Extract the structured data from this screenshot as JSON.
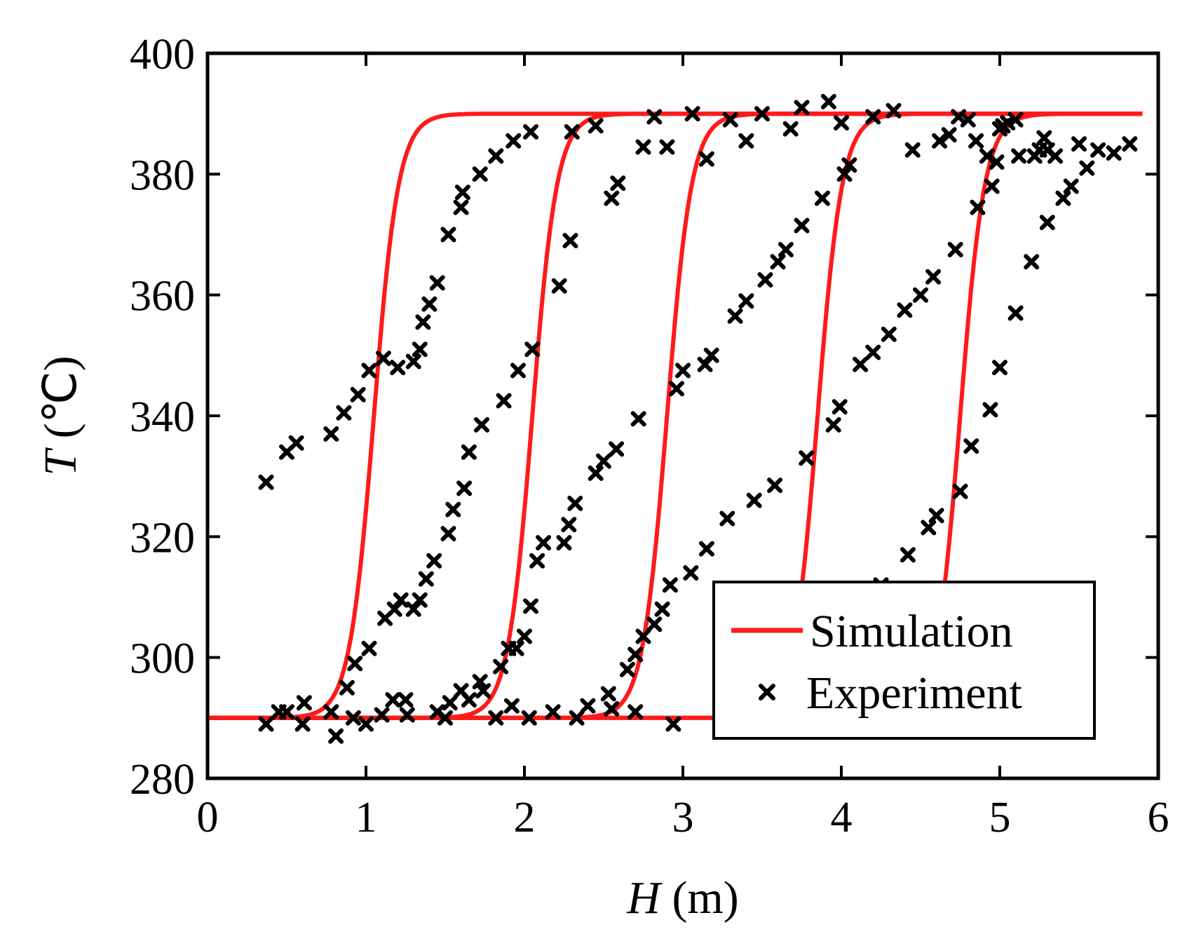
{
  "chart_data": {
    "type": "line",
    "title": "",
    "xlabel": {
      "symbol": "H",
      "unit": " (m)"
    },
    "ylabel": {
      "symbol": "T",
      "unit": " (℃)"
    },
    "xlim": [
      0,
      6
    ],
    "ylim": [
      280,
      400
    ],
    "x_ticks": [
      "0",
      "1",
      "2",
      "3",
      "4",
      "5",
      "6"
    ],
    "y_ticks": [
      "280",
      "300",
      "320",
      "340",
      "360",
      "380",
      "400"
    ],
    "grid": false,
    "legend_position": "bottom-right",
    "colors": {
      "simulation": "#ff1a1a",
      "experiment": "#000000",
      "axes": "#000000"
    },
    "series": [
      {
        "name": "Simulation",
        "kind": "line",
        "curves": [
          {
            "t_low": 290,
            "t_high": 390,
            "center_h": 1.05,
            "width_h": 0.62
          },
          {
            "t_low": 290,
            "t_high": 390,
            "center_h": 2.05,
            "width_h": 0.62
          },
          {
            "t_low": 290,
            "t_high": 390,
            "center_h": 2.9,
            "width_h": 0.62
          },
          {
            "t_low": 290,
            "t_high": 390,
            "center_h": 3.85,
            "width_h": 0.62
          },
          {
            "t_low": 290,
            "t_high": 390,
            "center_h": 4.75,
            "width_h": 0.62
          }
        ]
      },
      {
        "name": "Experiment",
        "kind": "scatter",
        "points": [
          [
            0.37,
            329
          ],
          [
            0.5,
            334
          ],
          [
            0.56,
            335.5
          ],
          [
            0.78,
            337
          ],
          [
            0.86,
            340.5
          ],
          [
            0.95,
            343.5
          ],
          [
            1.02,
            347.5
          ],
          [
            1.11,
            349.5
          ],
          [
            1.2,
            348
          ],
          [
            1.3,
            349
          ],
          [
            1.34,
            351
          ],
          [
            1.36,
            355.5
          ],
          [
            1.4,
            358.5
          ],
          [
            1.45,
            362
          ],
          [
            1.52,
            370
          ],
          [
            1.6,
            374.5
          ],
          [
            1.61,
            377
          ],
          [
            1.72,
            380
          ],
          [
            1.82,
            383
          ],
          [
            1.93,
            385.5
          ],
          [
            2.04,
            387
          ],
          [
            2.3,
            387
          ],
          [
            2.45,
            388
          ],
          [
            0.37,
            289
          ],
          [
            0.45,
            291
          ],
          [
            0.5,
            291
          ],
          [
            0.6,
            289
          ],
          [
            0.61,
            292.5
          ],
          [
            0.78,
            291
          ],
          [
            0.81,
            287
          ],
          [
            0.88,
            295
          ],
          [
            0.92,
            290
          ],
          [
            0.93,
            299
          ],
          [
            1.0,
            289
          ],
          [
            1.02,
            301.5
          ],
          [
            1.1,
            290.5
          ],
          [
            1.12,
            306.5
          ],
          [
            1.17,
            293
          ],
          [
            1.18,
            308
          ],
          [
            1.22,
            309.5
          ],
          [
            1.25,
            293
          ],
          [
            1.26,
            290.5
          ],
          [
            1.3,
            308
          ],
          [
            1.34,
            309.5
          ],
          [
            1.38,
            313
          ],
          [
            1.43,
            316
          ],
          [
            1.45,
            291
          ],
          [
            1.5,
            290
          ],
          [
            1.52,
            320.5
          ],
          [
            1.53,
            292.5
          ],
          [
            1.55,
            324.5
          ],
          [
            1.6,
            294.5
          ],
          [
            1.62,
            328
          ],
          [
            1.65,
            293
          ],
          [
            1.65,
            334
          ],
          [
            1.72,
            296
          ],
          [
            1.73,
            338.5
          ],
          [
            1.74,
            294.5
          ],
          [
            1.82,
            290
          ],
          [
            1.85,
            298.5
          ],
          [
            1.87,
            342.5
          ],
          [
            1.9,
            301.5
          ],
          [
            1.92,
            292
          ],
          [
            1.95,
            301.5
          ],
          [
            1.96,
            347.5
          ],
          [
            2.0,
            303.5
          ],
          [
            2.03,
            290
          ],
          [
            2.04,
            308.5
          ],
          [
            2.05,
            351
          ],
          [
            2.08,
            316
          ],
          [
            2.12,
            319
          ],
          [
            2.18,
            291
          ],
          [
            2.22,
            361.5
          ],
          [
            2.25,
            319
          ],
          [
            2.28,
            322
          ],
          [
            2.29,
            369
          ],
          [
            2.32,
            325.5
          ],
          [
            2.33,
            290
          ],
          [
            2.4,
            292
          ],
          [
            2.45,
            330.5
          ],
          [
            2.5,
            332.5
          ],
          [
            2.53,
            294
          ],
          [
            2.55,
            291.5
          ],
          [
            2.55,
            376
          ],
          [
            2.58,
            334.5
          ],
          [
            2.59,
            378.5
          ],
          [
            2.7,
            291
          ],
          [
            2.72,
            339.5
          ],
          [
            2.75,
            384.5
          ],
          [
            2.82,
            389.5
          ],
          [
            2.9,
            384.5
          ],
          [
            2.96,
            344.5
          ],
          [
            3.06,
            390
          ],
          [
            3.15,
            382.5
          ],
          [
            3.3,
            389
          ],
          [
            3.4,
            385.5
          ],
          [
            3.5,
            390
          ],
          [
            3.68,
            387.5
          ],
          [
            3.75,
            391
          ],
          [
            3.92,
            392
          ],
          [
            4.0,
            388.5
          ],
          [
            4.2,
            389.5
          ],
          [
            4.33,
            390.5
          ],
          [
            2.65,
            298
          ],
          [
            2.7,
            300.5
          ],
          [
            2.75,
            303.5
          ],
          [
            2.82,
            305.5
          ],
          [
            2.87,
            308
          ],
          [
            2.92,
            312
          ],
          [
            2.94,
            289
          ],
          [
            3.0,
            347.5
          ],
          [
            3.05,
            314
          ],
          [
            3.14,
            348.5
          ],
          [
            3.18,
            350
          ],
          [
            3.15,
            318
          ],
          [
            3.28,
            323
          ],
          [
            3.33,
            356.5
          ],
          [
            3.4,
            359
          ],
          [
            3.45,
            326
          ],
          [
            3.52,
            362.5
          ],
          [
            3.58,
            328.5
          ],
          [
            3.6,
            365.5
          ],
          [
            3.65,
            367.5
          ],
          [
            3.75,
            371.5
          ],
          [
            3.78,
            333
          ],
          [
            3.88,
            376
          ],
          [
            3.95,
            338.5
          ],
          [
            3.99,
            341.5
          ],
          [
            4.02,
            380
          ],
          [
            4.05,
            381.5
          ],
          [
            4.12,
            348.5
          ],
          [
            4.2,
            350.5
          ],
          [
            4.25,
            312
          ],
          [
            4.3,
            353.5
          ],
          [
            4.4,
            357.5
          ],
          [
            4.45,
            384
          ],
          [
            4.5,
            360
          ],
          [
            4.58,
            363
          ],
          [
            4.62,
            385.5
          ],
          [
            4.68,
            386.5
          ],
          [
            4.72,
            367.5
          ],
          [
            4.74,
            389.5
          ],
          [
            4.8,
            389
          ],
          [
            4.85,
            385.5
          ],
          [
            4.86,
            374.5
          ],
          [
            4.92,
            383
          ],
          [
            4.95,
            378
          ],
          [
            4.98,
            382
          ],
          [
            5.0,
            387.5
          ],
          [
            5.02,
            388
          ],
          [
            5.05,
            388.5
          ],
          [
            5.1,
            389
          ],
          [
            4.42,
            317
          ],
          [
            4.55,
            321.5
          ],
          [
            4.6,
            323.5
          ],
          [
            4.75,
            327.5
          ],
          [
            4.82,
            335
          ],
          [
            4.94,
            341
          ],
          [
            5.0,
            348
          ],
          [
            5.1,
            357
          ],
          [
            5.2,
            365.5
          ],
          [
            5.3,
            372
          ],
          [
            5.4,
            376
          ],
          [
            5.45,
            378
          ],
          [
            5.55,
            381
          ],
          [
            5.12,
            383
          ],
          [
            5.22,
            383
          ],
          [
            5.25,
            384
          ],
          [
            5.28,
            386
          ],
          [
            5.3,
            384
          ],
          [
            5.35,
            383
          ],
          [
            5.5,
            385
          ],
          [
            5.62,
            384
          ],
          [
            5.72,
            383.5
          ],
          [
            5.82,
            385
          ]
        ]
      }
    ]
  }
}
